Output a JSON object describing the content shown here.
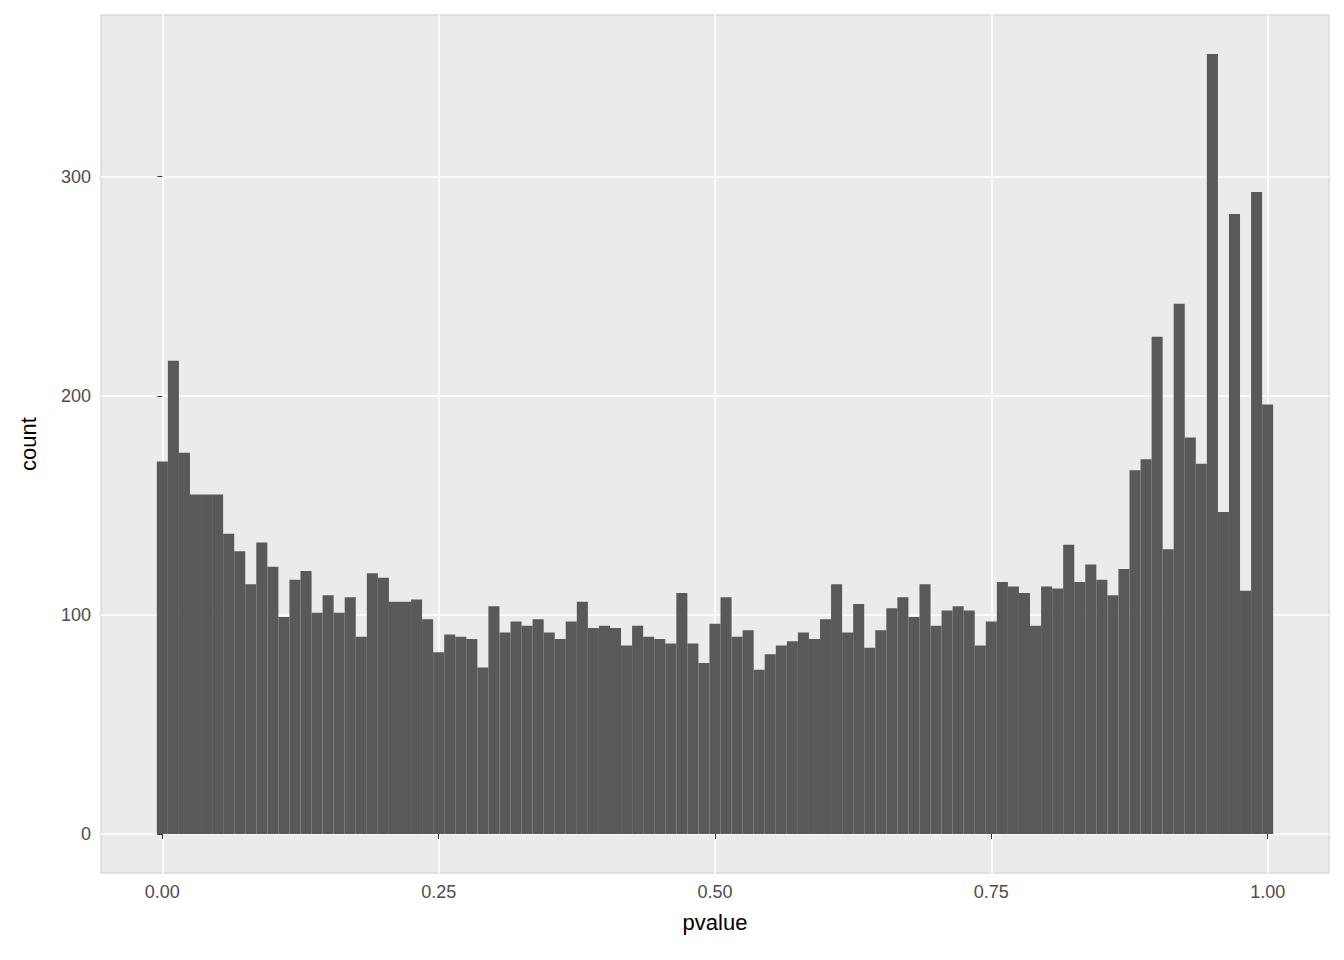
{
  "chart_data": {
    "type": "histogram",
    "xlabel": "pvalue",
    "ylabel": "count",
    "bins": [
      -0.005,
      0.005,
      0.015,
      0.025,
      0.035,
      0.045,
      0.055,
      0.065,
      0.075,
      0.085,
      0.095,
      0.105,
      0.115,
      0.125,
      0.135,
      0.145,
      0.155,
      0.165,
      0.175,
      0.185,
      0.195,
      0.205,
      0.215,
      0.225,
      0.235,
      0.245,
      0.255,
      0.265,
      0.275,
      0.285,
      0.295,
      0.305,
      0.315,
      0.325,
      0.335,
      0.345,
      0.355,
      0.365,
      0.375,
      0.385,
      0.395,
      0.405,
      0.415,
      0.425,
      0.435,
      0.445,
      0.455,
      0.465,
      0.475,
      0.485,
      0.495,
      0.505,
      0.515,
      0.525,
      0.535,
      0.545,
      0.555,
      0.565,
      0.575,
      0.585,
      0.595,
      0.605,
      0.615,
      0.625,
      0.635,
      0.645,
      0.655,
      0.665,
      0.675,
      0.685,
      0.695,
      0.705,
      0.715,
      0.725,
      0.735,
      0.745,
      0.755,
      0.765,
      0.775,
      0.785,
      0.795,
      0.805,
      0.815,
      0.825,
      0.835,
      0.845,
      0.855,
      0.865,
      0.875,
      0.885,
      0.895,
      0.905,
      0.915,
      0.925,
      0.935,
      0.945,
      0.955,
      0.965,
      0.975,
      0.985,
      0.995,
      1.005
    ],
    "counts": [
      170,
      216,
      174,
      155,
      155,
      155,
      137,
      129,
      114,
      133,
      122,
      99,
      116,
      120,
      101,
      109,
      101,
      108,
      90,
      119,
      117,
      106,
      106,
      107,
      98,
      83,
      91,
      90,
      89,
      76,
      104,
      92,
      97,
      95,
      98,
      92,
      89,
      97,
      106,
      94,
      95,
      94,
      86,
      95,
      90,
      89,
      87,
      110,
      87,
      78,
      96,
      108,
      90,
      93,
      75,
      82,
      86,
      88,
      92,
      89,
      98,
      114,
      92,
      105,
      85,
      93,
      103,
      108,
      99,
      114,
      95,
      102,
      104,
      102,
      86,
      97,
      115,
      113,
      110,
      95,
      113,
      112,
      132,
      115,
      123,
      116,
      109,
      121,
      166,
      171,
      227,
      130,
      242,
      181,
      169,
      356,
      147,
      283,
      111,
      293,
      196
    ],
    "color": "#595959",
    "xlim": [
      -0.0555,
      1.0555
    ],
    "xticks": [
      {
        "value": 0,
        "label": "0.00"
      },
      {
        "value": 0.25,
        "label": "0.25"
      },
      {
        "value": 0.5,
        "label": "0.50"
      },
      {
        "value": 0.75,
        "label": "0.75"
      },
      {
        "value": 1,
        "label": "1.00"
      }
    ],
    "ylim": [
      -17.8,
      373.8
    ],
    "yticks": [
      0,
      100,
      200,
      300
    ],
    "grid": true
  }
}
